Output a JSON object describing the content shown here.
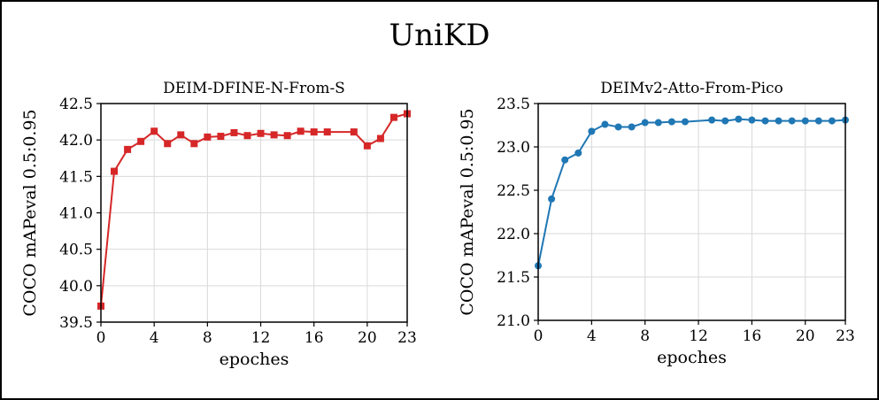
{
  "figure": {
    "title": "UniKD"
  },
  "chart_data": [
    {
      "type": "line",
      "title": "DEIM-DFINE-N-From-S",
      "xlabel": "epoches",
      "ylabel": "COCO mAPeval 0.5:0.95",
      "xlim": [
        0,
        23
      ],
      "ylim": [
        39.5,
        42.5
      ],
      "xticks": [
        "0",
        "4",
        "8",
        "12",
        "16",
        "20",
        "23"
      ],
      "yticks": [
        "39.5",
        "40.0",
        "40.5",
        "41.0",
        "41.5",
        "42.0",
        "42.5"
      ],
      "grid": true,
      "marker": "square",
      "color": "#d62728",
      "x": [
        0,
        1,
        2,
        3,
        4,
        5,
        6,
        7,
        8,
        9,
        10,
        11,
        12,
        13,
        14,
        15,
        16,
        17,
        19,
        20,
        21,
        22,
        23
      ],
      "y": [
        39.72,
        41.57,
        41.87,
        41.98,
        42.12,
        41.95,
        42.07,
        41.95,
        42.04,
        42.05,
        42.1,
        42.06,
        42.09,
        42.07,
        42.06,
        42.12,
        42.11,
        42.11,
        42.11,
        41.92,
        42.02,
        42.31,
        42.36
      ]
    },
    {
      "type": "line",
      "title": "DEIMv2-Atto-From-Pico",
      "xlabel": "epoches",
      "ylabel": "COCO mAPeval 0.5:0.95",
      "xlim": [
        0,
        23
      ],
      "ylim": [
        21.0,
        23.5
      ],
      "xticks": [
        "0",
        "4",
        "8",
        "12",
        "16",
        "20",
        "23"
      ],
      "yticks": [
        "21.0",
        "21.5",
        "22.0",
        "22.5",
        "23.0",
        "23.5"
      ],
      "grid": true,
      "marker": "circle",
      "color": "#1f77b4",
      "x": [
        0,
        1,
        2,
        3,
        4,
        5,
        6,
        7,
        8,
        9,
        10,
        11,
        13,
        14,
        15,
        16,
        17,
        18,
        19,
        20,
        21,
        22,
        23
      ],
      "y": [
        21.63,
        22.4,
        22.85,
        22.93,
        23.18,
        23.26,
        23.23,
        23.23,
        23.28,
        23.28,
        23.29,
        23.29,
        23.31,
        23.3,
        23.32,
        23.31,
        23.3,
        23.3,
        23.3,
        23.3,
        23.3,
        23.3,
        23.31
      ]
    }
  ]
}
